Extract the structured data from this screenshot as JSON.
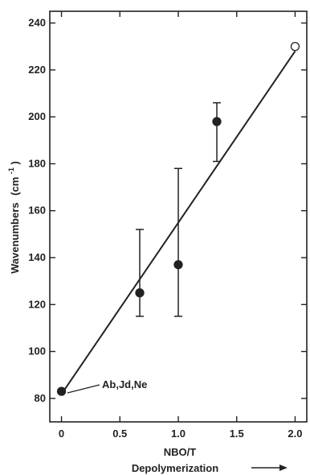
{
  "chart_data": {
    "type": "scatter",
    "xlabel": "NBO/T",
    "xlabel2": "Depolymerization",
    "ylabel": "Wavenumbers",
    "ylabel_unit": "(cm",
    "ylabel_exp": "-1",
    "ylabel_close": ")",
    "xlim": [
      -0.1,
      2.1
    ],
    "ylim": [
      70,
      245
    ],
    "x_ticks": [
      0,
      0.5,
      1.0,
      1.5,
      2.0
    ],
    "x_tick_labels": [
      "0",
      "0.5",
      "1.0",
      "1.5",
      "2.0"
    ],
    "y_ticks": [
      80,
      100,
      120,
      140,
      160,
      180,
      200,
      220,
      240
    ],
    "y_tick_labels": [
      "80",
      "100",
      "120",
      "140",
      "160",
      "180",
      "200",
      "220",
      "240"
    ],
    "grid": false,
    "points": [
      {
        "x": 0,
        "y": 83,
        "filled": true,
        "err_low": null,
        "err_high": null
      },
      {
        "x": 0.67,
        "y": 125,
        "filled": true,
        "err_low": 115,
        "err_high": 152
      },
      {
        "x": 1.0,
        "y": 137,
        "filled": true,
        "err_low": 115,
        "err_high": 178
      },
      {
        "x": 1.33,
        "y": 198,
        "filled": true,
        "err_low": 181,
        "err_high": 206
      },
      {
        "x": 2.0,
        "y": 230,
        "filled": false,
        "err_low": null,
        "err_high": null
      }
    ],
    "fit_line": {
      "x": [
        0.03,
        2.0
      ],
      "y": [
        84,
        228
      ]
    },
    "annotation": {
      "text": "Ab,Jd,Ne",
      "x": 0,
      "y": 83
    }
  }
}
